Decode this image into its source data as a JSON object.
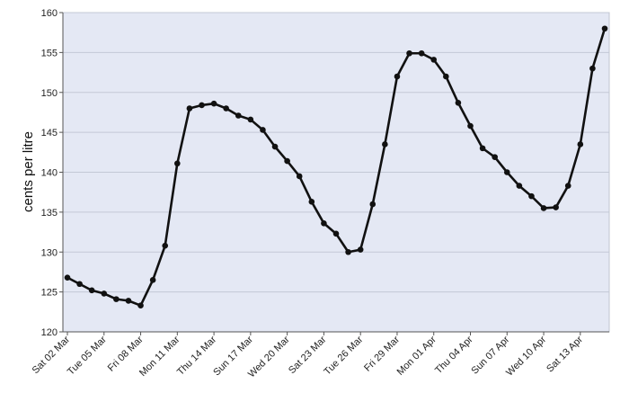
{
  "chart_data": {
    "type": "line",
    "title": "",
    "xlabel": "",
    "ylabel": "cents per litre",
    "ylim": [
      120,
      160
    ],
    "yticks": [
      120,
      125,
      130,
      135,
      140,
      145,
      150,
      155,
      160
    ],
    "grid": true,
    "x": [
      "02 Mar",
      "03 Mar",
      "04 Mar",
      "05 Mar",
      "06 Mar",
      "07 Mar",
      "08 Mar",
      "09 Mar",
      "10 Mar",
      "11 Mar",
      "12 Mar",
      "13 Mar",
      "14 Mar",
      "15 Mar",
      "16 Mar",
      "17 Mar",
      "18 Mar",
      "19 Mar",
      "20 Mar",
      "21 Mar",
      "22 Mar",
      "23 Mar",
      "24 Mar",
      "25 Mar",
      "26 Mar",
      "27 Mar",
      "28 Mar",
      "29 Mar",
      "30 Mar",
      "31 Mar",
      "01 Apr",
      "02 Apr",
      "03 Apr",
      "04 Apr",
      "05 Apr",
      "06 Apr",
      "07 Apr",
      "08 Apr",
      "09 Apr",
      "10 Apr",
      "11 Apr",
      "12 Apr",
      "13 Apr",
      "14 Apr",
      "15 Apr"
    ],
    "xtick_labels": [
      "Sat 02 Mar",
      "Tue 05 Mar",
      "Fri 08 Mar",
      "Mon 11 Mar",
      "Thu 14 Mar",
      "Sun 17 Mar",
      "Wed 20 Mar",
      "Sat 23 Mar",
      "Tue 26 Mar",
      "Fri 29 Mar",
      "Mon 01 Apr",
      "Thu 04 Apr",
      "Sun 07 Apr",
      "Wed 10 Apr",
      "Sat 13 Apr"
    ],
    "xtick_index": [
      0,
      3,
      6,
      9,
      12,
      15,
      18,
      21,
      24,
      27,
      30,
      33,
      36,
      39,
      42
    ],
    "series": [
      {
        "values": [
          126.8,
          126.0,
          125.2,
          124.8,
          124.1,
          123.9,
          123.3,
          126.5,
          130.8,
          141.1,
          148.0,
          148.4,
          148.6,
          148.0,
          147.1,
          146.6,
          145.3,
          143.2,
          141.4,
          139.5,
          136.3,
          133.6,
          132.3,
          130.0,
          130.3,
          136.0,
          143.5,
          152.0,
          154.9,
          154.9,
          154.1,
          152.0,
          148.7,
          145.8,
          143.0,
          141.9,
          140.0,
          138.3,
          137.0,
          135.5,
          135.6,
          138.3,
          143.5,
          153.0,
          158.0
        ]
      }
    ]
  }
}
